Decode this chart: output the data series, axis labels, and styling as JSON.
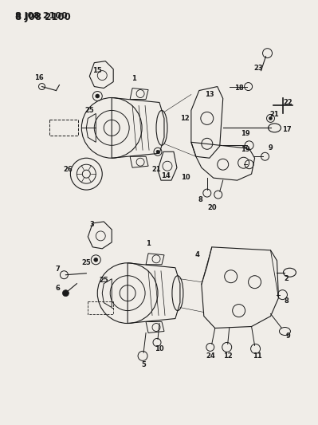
{
  "title": "8 J08 2100",
  "bg_color": "#f0ede8",
  "line_color": "#1a1a1a",
  "label_color": "#1a1a1a",
  "fig_w": 3.99,
  "fig_h": 5.33,
  "dpi": 100
}
